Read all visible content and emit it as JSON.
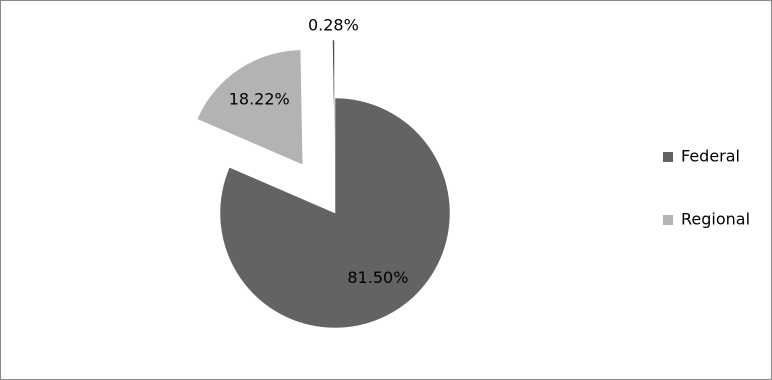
{
  "chart_data": {
    "type": "pie",
    "categories": [
      "Federal",
      "Regional",
      null
    ],
    "values": [
      81.5,
      18.22,
      0.28
    ],
    "value_labels": [
      "81.50%",
      "18.22%",
      "0.28%"
    ],
    "colors": [
      "#636363",
      "#b3b3b3",
      "#4d4d4d"
    ],
    "exploded": [
      false,
      true,
      true
    ],
    "legend": "right"
  }
}
